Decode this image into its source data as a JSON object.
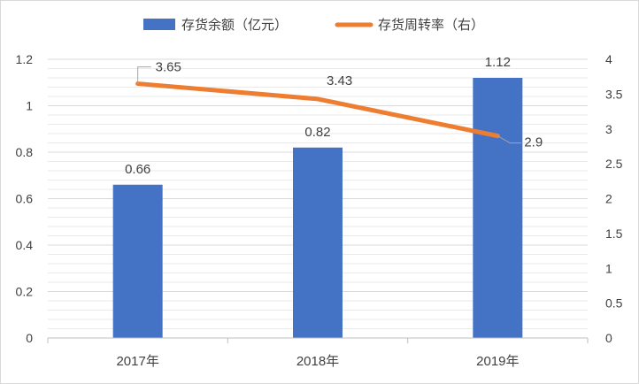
{
  "chart_data": {
    "type": "bar",
    "categories": [
      "2017年",
      "2018年",
      "2019年"
    ],
    "series": [
      {
        "name": "存货余额（亿元）",
        "type": "bar",
        "axis": "left",
        "color": "#4472c4",
        "values": [
          0.66,
          0.82,
          1.12
        ],
        "labels": [
          "0.66",
          "0.82",
          "1.12"
        ]
      },
      {
        "name": "存货周转率（右）",
        "type": "line",
        "axis": "right",
        "color": "#ed7d31",
        "values": [
          3.65,
          3.43,
          2.9
        ],
        "labels": [
          "3.65",
          "3.43",
          "2.9"
        ]
      }
    ],
    "y_left": {
      "ylim": [
        0,
        1.2
      ],
      "ticks": [
        0,
        0.2,
        0.4,
        0.6,
        0.8,
        1,
        1.2
      ],
      "tick_labels": [
        "0",
        "0.2",
        "0.4",
        "0.6",
        "0.8",
        "1",
        "1.2"
      ]
    },
    "y_right": {
      "ylim": [
        0,
        4
      ],
      "ticks": [
        0,
        0.5,
        1,
        1.5,
        2,
        2.5,
        3,
        3.5,
        4
      ],
      "tick_labels": [
        "0",
        "0.5",
        "1",
        "1.5",
        "2",
        "2.5",
        "3",
        "3.5",
        "4"
      ]
    },
    "legend_position": "top",
    "grid": true,
    "grid_color": "#d9d9d9",
    "text_color": "#404040"
  }
}
